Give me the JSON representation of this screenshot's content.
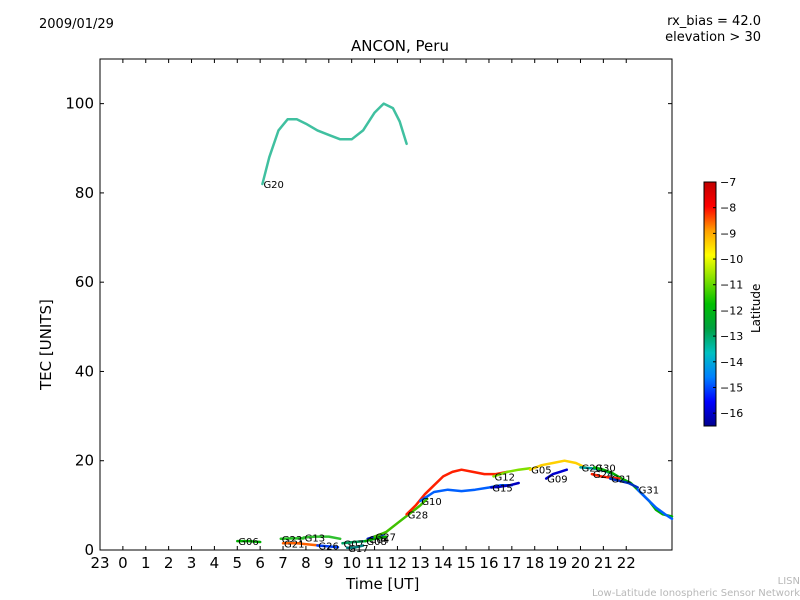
{
  "header": {
    "date": "2009/01/29",
    "title": "ANCON, Peru",
    "rx_bias": "rx_bias = 42.0",
    "elevation": "elevation > 30"
  },
  "footer": {
    "credit_line1": "LISN",
    "credit_line2": "Low-Latitude Ionospheric Sensor Network"
  },
  "colorbar": {
    "label": "Latitude",
    "ticks": [
      -7,
      -8,
      -9,
      -10,
      -11,
      -12,
      -13,
      -14,
      -15,
      -16
    ],
    "range": [
      -16.5,
      -7
    ],
    "colormap": [
      "#00008f",
      "#0000ff",
      "#0080ff",
      "#00c0c0",
      "#00a040",
      "#00c000",
      "#80e000",
      "#ffff00",
      "#ffa000",
      "#ff0000",
      "#c00000"
    ]
  },
  "chart_data": {
    "type": "line",
    "title": "ANCON, Peru",
    "xlabel": "Time [UT]",
    "ylabel": "TEC [UNITS]",
    "xlim": [
      -1,
      24
    ],
    "ylim": [
      0,
      110
    ],
    "xticks": [
      -1,
      0,
      1,
      2,
      3,
      4,
      5,
      6,
      7,
      8,
      9,
      10,
      11,
      12,
      13,
      14,
      15,
      16,
      17,
      18,
      19,
      20,
      21,
      22
    ],
    "xtick_labels": [
      "23",
      "0",
      "1",
      "2",
      "3",
      "4",
      "5",
      "6",
      "7",
      "8",
      "9",
      "10",
      "11",
      "12",
      "13",
      "14",
      "15",
      "16",
      "17",
      "18",
      "19",
      "20",
      "21",
      "22"
    ],
    "yticks": [
      0,
      20,
      40,
      60,
      80,
      100
    ],
    "series": [
      {
        "name": "G20",
        "color": "#40c0a0",
        "points": [
          [
            6.1,
            82
          ],
          [
            6.4,
            88
          ],
          [
            6.8,
            94
          ],
          [
            7.2,
            96.5
          ],
          [
            7.6,
            96.5
          ],
          [
            8.0,
            95.5
          ],
          [
            8.5,
            94
          ],
          [
            9.0,
            93
          ],
          [
            9.5,
            92
          ],
          [
            10.0,
            92
          ],
          [
            10.5,
            94
          ],
          [
            11.0,
            98
          ],
          [
            11.4,
            100
          ],
          [
            11.8,
            99
          ],
          [
            12.1,
            96
          ],
          [
            12.4,
            91
          ]
        ]
      },
      {
        "name": "G06",
        "color": "#00b000",
        "points": [
          [
            5.0,
            2
          ],
          [
            5.5,
            2
          ],
          [
            6.0,
            1.8
          ]
        ]
      },
      {
        "name": "G23",
        "color": "#20c020",
        "points": [
          [
            6.9,
            2.5
          ],
          [
            7.4,
            2.6
          ],
          [
            7.9,
            2.6
          ]
        ]
      },
      {
        "name": "G13",
        "color": "#30c030",
        "points": [
          [
            7.9,
            2.8
          ],
          [
            8.4,
            3
          ],
          [
            9.0,
            3
          ],
          [
            9.5,
            2.5
          ]
        ]
      },
      {
        "name": "G21",
        "color": "#ff6000",
        "points": [
          [
            7.0,
            1.5
          ],
          [
            7.6,
            1.5
          ],
          [
            8.2,
            1.2
          ],
          [
            8.6,
            1
          ]
        ]
      },
      {
        "name": "G26",
        "color": "#0040ff",
        "points": [
          [
            8.5,
            1
          ],
          [
            9.0,
            0.8
          ],
          [
            9.4,
            0.6
          ]
        ]
      },
      {
        "name": "G07",
        "color": "#00a060",
        "points": [
          [
            9.6,
            1.5
          ],
          [
            10.1,
            1.8
          ],
          [
            10.6,
            2
          ]
        ]
      },
      {
        "name": "G17",
        "color": "#008080",
        "points": [
          [
            9.8,
            0.5
          ],
          [
            10.1,
            0.5
          ],
          [
            10.5,
            1
          ]
        ]
      },
      {
        "name": "G04",
        "color": "#0020c0",
        "points": [
          [
            10.7,
            2.5
          ],
          [
            11.0,
            3
          ],
          [
            11.4,
            3.5
          ]
        ]
      },
      {
        "name": "G08",
        "color": "#00a000",
        "points": [
          [
            10.6,
            2
          ],
          [
            11.0,
            2.5
          ],
          [
            11.5,
            3
          ]
        ]
      },
      {
        "name": "G27",
        "color": "#40c000",
        "points": [
          [
            11.0,
            3
          ],
          [
            11.5,
            4
          ],
          [
            12.0,
            6
          ],
          [
            12.5,
            8
          ],
          [
            13.0,
            10
          ],
          [
            13.3,
            11.5
          ]
        ]
      },
      {
        "name": "G28",
        "color": "#ff2000",
        "points": [
          [
            12.4,
            8
          ],
          [
            12.8,
            10
          ],
          [
            13.2,
            12.5
          ],
          [
            13.6,
            14.5
          ],
          [
            14.0,
            16.5
          ],
          [
            14.4,
            17.5
          ],
          [
            14.8,
            18
          ],
          [
            15.3,
            17.5
          ],
          [
            15.8,
            17
          ],
          [
            16.3,
            17
          ],
          [
            16.8,
            17.5
          ]
        ]
      },
      {
        "name": "G10",
        "color": "#0060ff",
        "points": [
          [
            13.0,
            11
          ],
          [
            13.6,
            13
          ],
          [
            14.2,
            13.5
          ],
          [
            14.8,
            13.2
          ],
          [
            15.4,
            13.5
          ],
          [
            16.0,
            14
          ],
          [
            16.5,
            14.5
          ],
          [
            17.0,
            14.5
          ]
        ]
      },
      {
        "name": "G15",
        "color": "#0000c0",
        "points": [
          [
            16.1,
            14
          ],
          [
            16.5,
            14.2
          ],
          [
            16.9,
            14.5
          ],
          [
            17.3,
            15
          ]
        ]
      },
      {
        "name": "G12",
        "color": "#80e000",
        "points": [
          [
            16.2,
            16.5
          ],
          [
            16.8,
            17.5
          ],
          [
            17.3,
            18
          ],
          [
            17.8,
            18.3
          ]
        ]
      },
      {
        "name": "G05",
        "color": "#ffd000",
        "points": [
          [
            17.8,
            18
          ],
          [
            18.3,
            19
          ],
          [
            18.8,
            19.5
          ],
          [
            19.3,
            20
          ],
          [
            19.8,
            19.5
          ],
          [
            20.2,
            18.5
          ]
        ]
      },
      {
        "name": "G09",
        "color": "#0000d0",
        "points": [
          [
            18.5,
            16
          ],
          [
            18.8,
            17
          ],
          [
            19.1,
            17.5
          ],
          [
            19.4,
            18
          ]
        ]
      },
      {
        "name": "G29",
        "color": "#00a0a0",
        "points": [
          [
            20.0,
            18.5
          ],
          [
            20.5,
            18.3
          ],
          [
            21.0,
            17.8
          ],
          [
            21.4,
            17
          ]
        ]
      },
      {
        "name": "G30",
        "color": "#00b000",
        "points": [
          [
            20.6,
            18.5
          ],
          [
            21.0,
            18
          ],
          [
            21.4,
            17.2
          ],
          [
            21.8,
            16
          ],
          [
            22.2,
            15
          ],
          [
            22.6,
            13
          ],
          [
            23.0,
            11
          ],
          [
            23.3,
            9
          ],
          [
            23.6,
            8
          ],
          [
            24.0,
            7.5
          ]
        ]
      },
      {
        "name": "G24",
        "color": "#ff2000",
        "points": [
          [
            20.5,
            17
          ],
          [
            20.9,
            16.5
          ],
          [
            21.3,
            16.2
          ],
          [
            21.7,
            16
          ]
        ]
      },
      {
        "name": "G21",
        "color": "#0030c0",
        "points": [
          [
            21.3,
            16
          ],
          [
            21.7,
            15.5
          ],
          [
            22.1,
            15
          ],
          [
            22.5,
            14
          ]
        ]
      },
      {
        "name": "G31",
        "color": "#0060ff",
        "points": [
          [
            22.5,
            13.5
          ],
          [
            22.9,
            11.5
          ],
          [
            23.3,
            9.5
          ],
          [
            23.7,
            8
          ],
          [
            24.0,
            7
          ]
        ]
      }
    ]
  }
}
